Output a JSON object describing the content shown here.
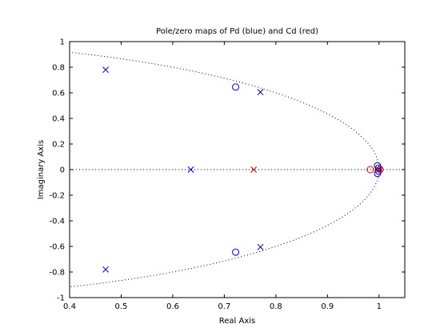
{
  "chart_data": {
    "type": "scatter",
    "title": "Pole/zero maps of Pd (blue) and Cd (red)",
    "xlabel": "Real Axis",
    "ylabel": "Imaginary Axis",
    "xlim": [
      0.4,
      1.05
    ],
    "ylim": [
      -1,
      1
    ],
    "xticks": [
      0.4,
      0.5,
      0.6,
      0.7,
      0.8,
      0.9,
      1
    ],
    "xtick_labels": [
      "0.4",
      "0.5",
      "0.6",
      "0.7",
      "0.8",
      "0.9",
      "1"
    ],
    "yticks": [
      -1,
      -0.8,
      -0.6,
      -0.4,
      -0.2,
      0,
      0.2,
      0.4,
      0.6,
      0.8,
      1
    ],
    "ytick_labels": [
      "-1",
      "-0.8",
      "-0.6",
      "-0.4",
      "-0.2",
      "0",
      "0.2",
      "0.4",
      "0.6",
      "0.8",
      "1"
    ],
    "grid": false,
    "unit_circle": true,
    "real_axis_line": true,
    "series": [
      {
        "kind": "poles",
        "marker": "x",
        "color": "#0000cc",
        "points": [
          [
            0.47,
            0.78
          ],
          [
            0.47,
            -0.78
          ],
          [
            0.77,
            0.605
          ],
          [
            0.77,
            -0.605
          ],
          [
            0.635,
            0.0
          ]
        ]
      },
      {
        "kind": "zeros",
        "marker": "o",
        "color": "#0000cc",
        "points": [
          [
            0.722,
            0.645
          ],
          [
            0.722,
            -0.645
          ],
          [
            0.997,
            0.03
          ],
          [
            0.997,
            -0.03
          ],
          [
            0.999,
            0.012
          ],
          [
            0.999,
            -0.012
          ]
        ]
      },
      {
        "kind": "poles",
        "marker": "x",
        "color": "#cc0000",
        "points": [
          [
            0.757,
            0.0
          ],
          [
            1.0,
            0.0
          ]
        ]
      },
      {
        "kind": "zeros",
        "marker": "o",
        "color": "#cc0000",
        "points": [
          [
            0.983,
            0.0
          ],
          [
            1.002,
            0.0
          ]
        ]
      }
    ]
  }
}
